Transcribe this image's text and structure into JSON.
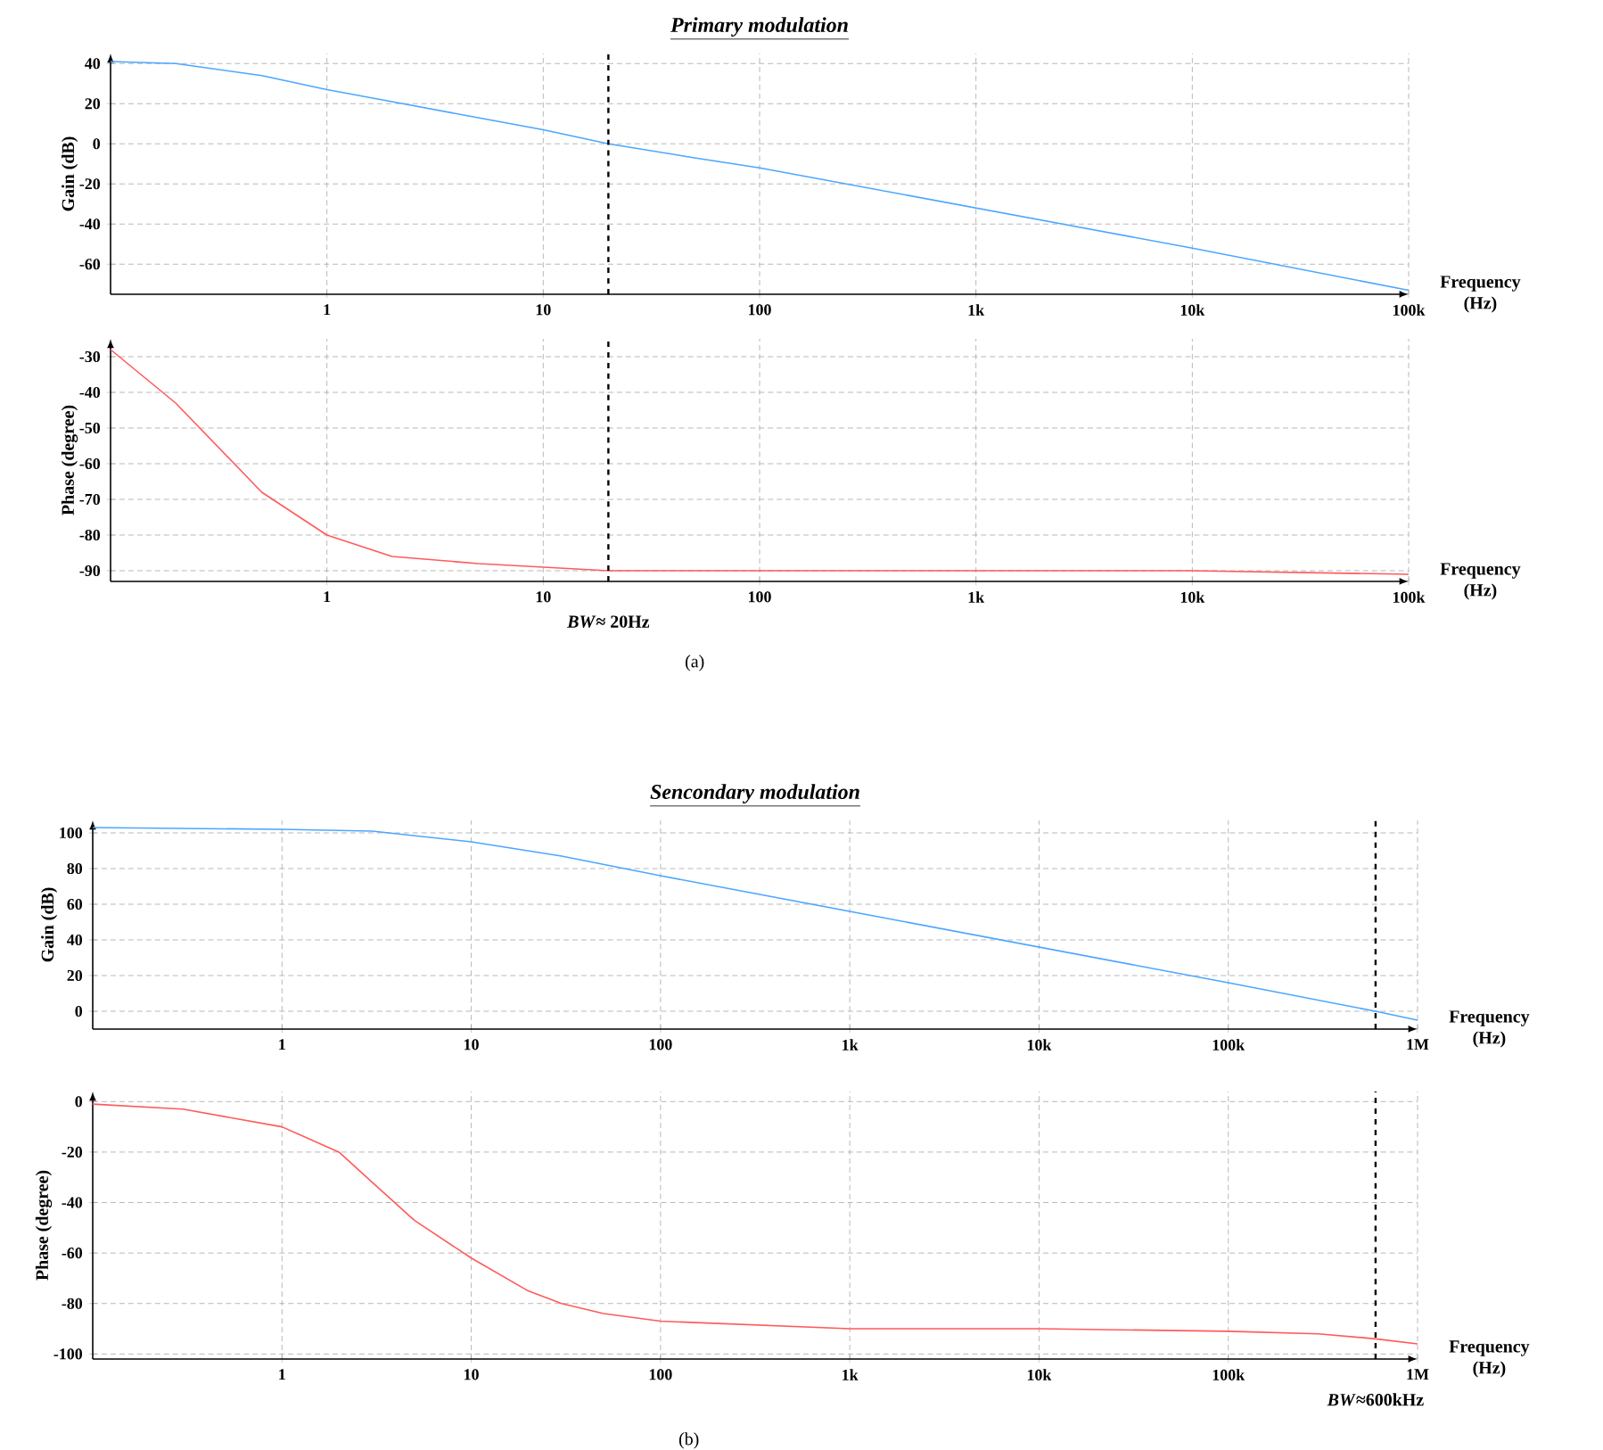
{
  "chart_data": [
    {
      "type": "line",
      "title": "Primary modulation",
      "ylabel": "Gain (dB)",
      "xlabel": "Frequency (Hz)",
      "log": "x",
      "grid": true,
      "color": "#4da6ff",
      "x": [
        0.1,
        0.2,
        0.5,
        1,
        2,
        5,
        10,
        20,
        50,
        100,
        1000,
        10000,
        100000
      ],
      "values": [
        41,
        40,
        34,
        27,
        21,
        13,
        7,
        0,
        -7,
        -12,
        -32,
        -52,
        -73
      ],
      "xlim": [
        0.1,
        100000
      ],
      "ylim": [
        -75,
        45
      ],
      "xticks": [
        1,
        10,
        100,
        {
          "value": 1000,
          "label": "1k"
        },
        {
          "value": 10000,
          "label": "10k"
        },
        {
          "value": 100000,
          "label": "100k"
        }
      ],
      "yticks": [
        -60,
        -40,
        -20,
        0,
        20,
        40
      ],
      "ref_lines": [
        {
          "axis": "x",
          "value": 20,
          "line_style": "dashed",
          "color": "#000000"
        }
      ]
    },
    {
      "type": "line",
      "ylabel": "Phase (degree)",
      "xlabel": "Frequency (Hz)",
      "log": "x",
      "grid": true,
      "color": "#ff5a5a",
      "x": [
        0.1,
        0.2,
        0.5,
        1,
        2,
        5,
        10,
        20,
        50,
        100,
        1000,
        10000,
        100000
      ],
      "values": [
        -28,
        -43,
        -68,
        -80,
        -86,
        -88,
        -89,
        -90,
        -90,
        -90,
        -90,
        -90,
        -91
      ],
      "xlim": [
        0.1,
        100000
      ],
      "ylim": [
        -93,
        -25
      ],
      "xticks": [
        1,
        10,
        100,
        {
          "value": 1000,
          "label": "1k"
        },
        {
          "value": 10000,
          "label": "10k"
        },
        {
          "value": 100000,
          "label": "100k"
        }
      ],
      "yticks": [
        -90,
        -80,
        -70,
        -60,
        -50,
        -40,
        -30
      ],
      "ref_lines": [
        {
          "axis": "x",
          "value": 20,
          "line_style": "dashed",
          "color": "#000000",
          "label": "*BW*≈ 20Hz"
        }
      ],
      "annotations": [
        "(a)"
      ]
    },
    {
      "type": "line",
      "title": "Sencondary modulation",
      "ylabel": "Gain (dB)",
      "xlabel": "Frequency (Hz)",
      "log": "x",
      "grid": true,
      "color": "#4da6ff",
      "x": [
        0.1,
        1,
        3,
        10,
        30,
        100,
        1000,
        10000,
        100000,
        600000,
        1000000
      ],
      "values": [
        103,
        102,
        101,
        95,
        87,
        76,
        56,
        36,
        16,
        0,
        -5
      ],
      "xlim": [
        0.1,
        1000000
      ],
      "ylim": [
        -10,
        107
      ],
      "xticks": [
        1,
        10,
        100,
        {
          "value": 1000,
          "label": "1k"
        },
        {
          "value": 10000,
          "label": "10k"
        },
        {
          "value": 100000,
          "label": "100k"
        },
        {
          "value": 1000000,
          "label": "1M"
        }
      ],
      "yticks": [
        0,
        20,
        40,
        60,
        80,
        100
      ],
      "ref_lines": [
        {
          "axis": "x",
          "value": 600000,
          "line_style": "dashed",
          "color": "#000000"
        }
      ]
    },
    {
      "type": "line",
      "ylabel": "Phase (degree)",
      "xlabel": "Frequency (Hz)",
      "log": "x",
      "grid": true,
      "color": "#ff5a5a",
      "x": [
        0.1,
        0.3,
        1,
        2,
        3,
        5,
        10,
        20,
        30,
        50,
        100,
        1000,
        10000,
        100000,
        300000,
        600000,
        1000000
      ],
      "values": [
        -1,
        -3,
        -10,
        -20,
        -32,
        -47,
        -62,
        -75,
        -80,
        -84,
        -87,
        -90,
        -90,
        -91,
        -92,
        -94,
        -96
      ],
      "xlim": [
        0.1,
        1000000
      ],
      "ylim": [
        -102,
        4
      ],
      "xticks": [
        1,
        10,
        100,
        {
          "value": 1000,
          "label": "1k"
        },
        {
          "value": 10000,
          "label": "10k"
        },
        {
          "value": 100000,
          "label": "100k"
        },
        {
          "value": 1000000,
          "label": "1M"
        }
      ],
      "yticks": [
        -100,
        -80,
        -60,
        -40,
        -20,
        0
      ],
      "ref_lines": [
        {
          "axis": "x",
          "value": 600000,
          "line_style": "dashed",
          "color": "#000000",
          "label": "*BW*≈600kHz"
        }
      ],
      "annotations": [
        "(b)"
      ]
    }
  ]
}
